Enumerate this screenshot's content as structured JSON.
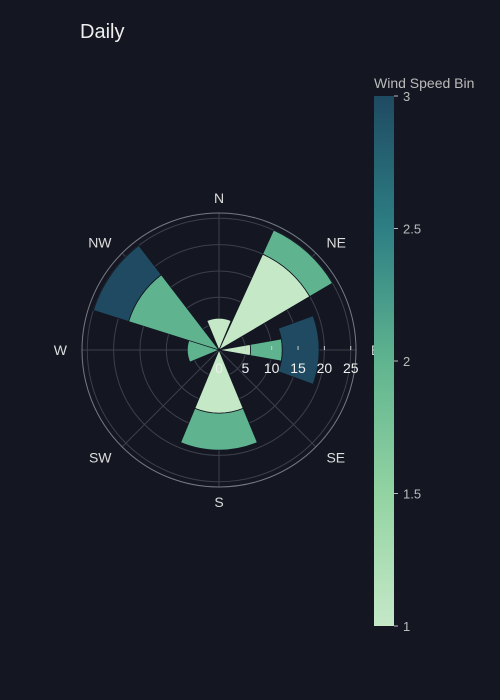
{
  "chart_data": {
    "type": "barpolar",
    "title": "Daily",
    "directions": [
      "N",
      "NE",
      "E",
      "SE",
      "S",
      "SW",
      "W",
      "NW"
    ],
    "radial_axis": {
      "range": [
        0,
        26
      ],
      "ticks": [
        0,
        5,
        10,
        15,
        20,
        25
      ],
      "tick_labels": [
        "0",
        "5",
        "10",
        "15",
        "20",
        "25"
      ]
    },
    "bars": [
      {
        "direction": "N",
        "angle": 0,
        "width": 45,
        "base": 0,
        "r": 6,
        "bin": 1
      },
      {
        "direction": "NE",
        "angle": 42,
        "width": 35,
        "base": 0,
        "r": 20,
        "bin": 1
      },
      {
        "direction": "NE",
        "angle": 42,
        "width": 35,
        "base": 20,
        "r": 25,
        "bin": 2
      },
      {
        "direction": "E",
        "angle": 90,
        "width": 20,
        "base": 0,
        "r": 6,
        "bin": 1
      },
      {
        "direction": "E",
        "angle": 90,
        "width": 20,
        "base": 6,
        "r": 12,
        "bin": 2
      },
      {
        "direction": "E",
        "angle": 90,
        "width": 40,
        "base": 12,
        "r": 19,
        "bin": 3
      },
      {
        "direction": "S",
        "angle": 180,
        "width": 45,
        "base": 0,
        "r": 12,
        "bin": 1
      },
      {
        "direction": "S",
        "angle": 180,
        "width": 45,
        "base": 12,
        "r": 19,
        "bin": 2
      },
      {
        "direction": "W",
        "angle": 270,
        "width": 45,
        "base": 0,
        "r": 6,
        "bin": 2
      },
      {
        "direction": "NW",
        "angle": 305,
        "width": 35,
        "base": 0,
        "r": 18,
        "bin": 2
      },
      {
        "direction": "NW",
        "angle": 305,
        "width": 35,
        "base": 18,
        "r": 25,
        "bin": 3
      }
    ],
    "colorbar": {
      "title": "Wind Speed Bin",
      "range": [
        1,
        3
      ],
      "ticks": [
        1,
        1.5,
        2,
        2.5,
        3
      ],
      "tick_labels": [
        "1",
        "1.5",
        "2",
        "2.5",
        "3"
      ],
      "colorscale": [
        [
          0,
          "#c5e8c7"
        ],
        [
          0.25,
          "#92d3a2"
        ],
        [
          0.5,
          "#5fb48f"
        ],
        [
          0.75,
          "#2d7f84"
        ],
        [
          1,
          "#1f4a62"
        ]
      ]
    },
    "colors": {
      "background": "#141722",
      "grid": "#3c404c",
      "outer_ring": "#767a85"
    }
  }
}
